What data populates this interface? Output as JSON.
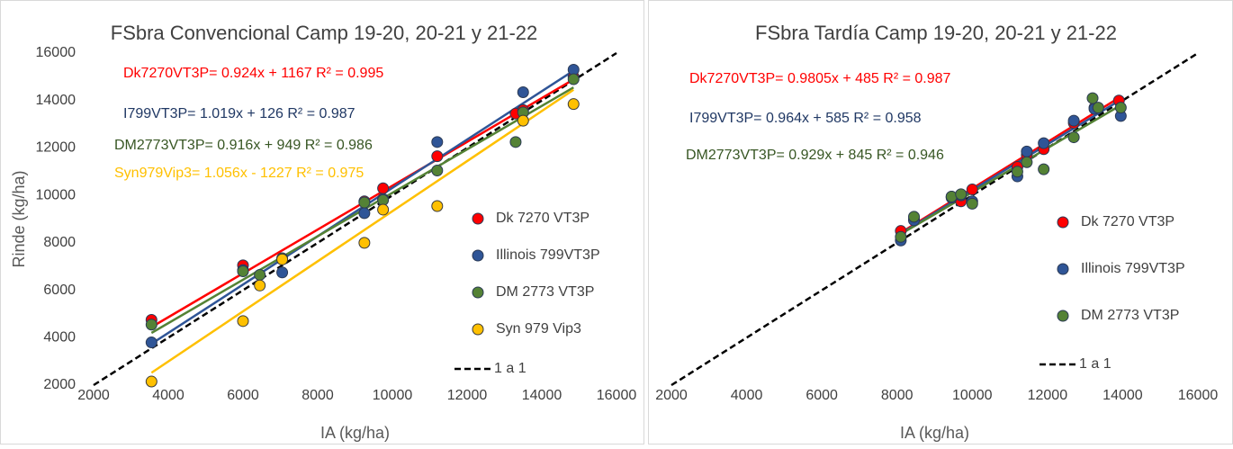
{
  "chart_data": [
    {
      "type": "scatter",
      "title": "FSbra Convencional Camp 19-20, 20-21 y 21-22",
      "x_label": "IA (kg/ha)",
      "y_label": "Rinde (kg/ha)",
      "xlim": [
        2000,
        16000
      ],
      "ylim": [
        2000,
        16000
      ],
      "xticks": [
        2000,
        4000,
        6000,
        8000,
        10000,
        12000,
        14000,
        16000
      ],
      "yticks": [
        2000,
        4000,
        6000,
        8000,
        10000,
        12000,
        14000,
        16000
      ],
      "legend": "right",
      "series": [
        {
          "name": "Dk 7270 VT3P",
          "color": "#ff0000",
          "text_color": "#ff0000",
          "annotation": "Dk7270VT3P= 0.924x + 1167 R² = 0.995",
          "slope": 0.924,
          "intercept": 1167,
          "x": [
            3550,
            6000,
            7050,
            9250,
            9750,
            11200,
            13300,
            13500,
            14850
          ],
          "y": [
            4750,
            7050,
            7300,
            9750,
            10300,
            11650,
            13450,
            13600,
            15000
          ]
        },
        {
          "name": "Illinois 799VT3P",
          "color": "#2f5597",
          "text_color": "#203864",
          "annotation": "I799VT3P= 1.019x + 126 R² = 0.987",
          "slope": 1.019,
          "intercept": 126,
          "x": [
            3550,
            6000,
            7050,
            9250,
            9750,
            11200,
            13500,
            14850
          ],
          "y": [
            3800,
            6850,
            6750,
            9250,
            9850,
            12250,
            14350,
            15300
          ]
        },
        {
          "name": "DM 2773 VT3P",
          "color": "#548235",
          "text_color": "#375623",
          "annotation": "DM2773VT3P= 0.916x + 949 R² = 0.986",
          "slope": 0.916,
          "intercept": 949,
          "x": [
            3550,
            6000,
            6450,
            7050,
            9250,
            9750,
            11200,
            13300,
            13500,
            14850
          ],
          "y": [
            4550,
            6800,
            6650,
            7350,
            9700,
            9800,
            11050,
            12250,
            13500,
            14900
          ]
        },
        {
          "name": "Syn 979 Vip3",
          "color": "#ffc000",
          "text_color": "#ffc000",
          "annotation": "Syn979Vip3= 1.056x - 1227 R² = 0.975",
          "slope": 1.056,
          "intercept": -1227,
          "x": [
            3550,
            6000,
            6450,
            7050,
            9250,
            9750,
            11200,
            13500,
            14850
          ],
          "y": [
            2150,
            4700,
            6200,
            7300,
            8000,
            9400,
            9550,
            13150,
            13850
          ]
        }
      ],
      "reference_line": {
        "name": "1 a 1",
        "color": "#000000"
      }
    },
    {
      "type": "scatter",
      "title": "FSbra Tardía Camp 19-20, 20-21 y 21-22",
      "x_label": "IA (kg/ha)",
      "xlim": [
        2000,
        16000
      ],
      "ylim": [
        2000,
        16000
      ],
      "xticks": [
        2000,
        4000,
        6000,
        8000,
        10000,
        12000,
        14000,
        16000
      ],
      "legend": "right",
      "series": [
        {
          "name": "Dk 7270 VT3P",
          "color": "#ff0000",
          "text_color": "#ff0000",
          "annotation": "Dk7270VT3P= 0.9805x + 485 R² = 0.987",
          "slope": 0.9805,
          "intercept": 485,
          "x": [
            8100,
            8450,
            9450,
            9700,
            10000,
            11200,
            11450,
            11900,
            12700,
            13250,
            13900
          ],
          "y": [
            8500,
            9000,
            9950,
            9750,
            10250,
            11200,
            11700,
            11950,
            13050,
            13700,
            14000
          ]
        },
        {
          "name": "Illinois 799VT3P",
          "color": "#2f5597",
          "text_color": "#203864",
          "annotation": "I799VT3P= 0.964x + 585 R² = 0.958",
          "slope": 0.964,
          "intercept": 585,
          "x": [
            8100,
            8450,
            9450,
            9700,
            10000,
            11200,
            11450,
            11900,
            12700,
            13250,
            13950
          ],
          "y": [
            8100,
            8950,
            9900,
            10000,
            9750,
            10800,
            11850,
            12200,
            13150,
            13650,
            13350
          ]
        },
        {
          "name": "DM 2773 VT3P",
          "color": "#548235",
          "text_color": "#375623",
          "annotation": "DM2773VT3P= 0.929x + 845 R² = 0.946",
          "slope": 0.929,
          "intercept": 845,
          "x": [
            8100,
            8450,
            9450,
            9700,
            10000,
            11200,
            11450,
            11900,
            12700,
            13200,
            13350,
            13950
          ],
          "y": [
            8250,
            9100,
            9950,
            10050,
            9650,
            11000,
            11400,
            11100,
            12450,
            14100,
            13700,
            13700
          ]
        }
      ],
      "reference_line": {
        "name": "1 a 1",
        "color": "#000000"
      }
    }
  ]
}
